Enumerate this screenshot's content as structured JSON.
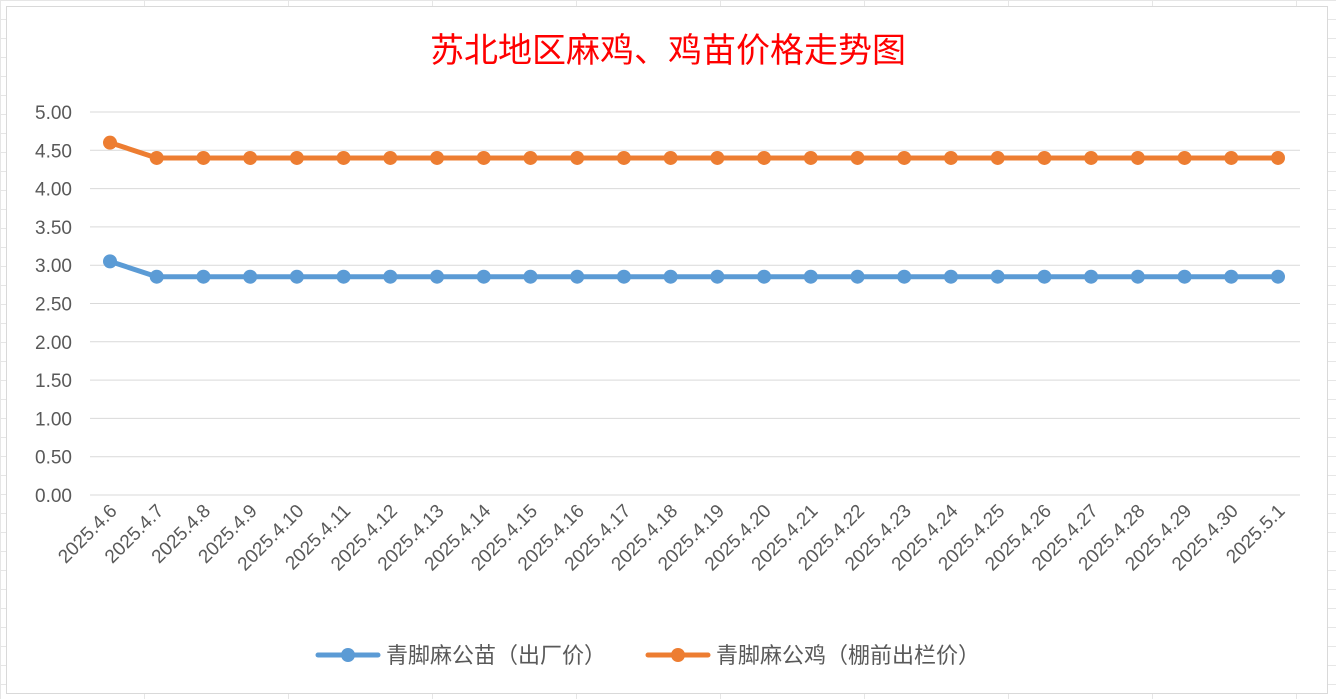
{
  "chart_data": {
    "type": "line",
    "title": "苏北地区麻鸡、鸡苗价格走势图",
    "title_color": "#ff0000",
    "categories": [
      "2025.4.6",
      "2025.4.7",
      "2025.4.8",
      "2025.4.9",
      "2025.4.10",
      "2025.4.11",
      "2025.4.12",
      "2025.4.13",
      "2025.4.14",
      "2025.4.15",
      "2025.4.16",
      "2025.4.17",
      "2025.4.18",
      "2025.4.19",
      "2025.4.20",
      "2025.4.21",
      "2025.4.22",
      "2025.4.23",
      "2025.4.24",
      "2025.4.25",
      "2025.4.26",
      "2025.4.27",
      "2025.4.28",
      "2025.4.29",
      "2025.4.30",
      "2025.5.1"
    ],
    "y_ticks": [
      "0.00",
      "0.50",
      "1.00",
      "1.50",
      "2.00",
      "2.50",
      "3.00",
      "3.50",
      "4.00",
      "4.50",
      "5.00"
    ],
    "ylim": [
      0,
      5
    ],
    "grid": true,
    "legend_position": "bottom",
    "series": [
      {
        "name": "青脚麻公苗（出厂价）",
        "color": "#5b9bd5",
        "values": [
          3.05,
          2.85,
          2.85,
          2.85,
          2.85,
          2.85,
          2.85,
          2.85,
          2.85,
          2.85,
          2.85,
          2.85,
          2.85,
          2.85,
          2.85,
          2.85,
          2.85,
          2.85,
          2.85,
          2.85,
          2.85,
          2.85,
          2.85,
          2.85,
          2.85,
          2.85
        ]
      },
      {
        "name": "青脚麻公鸡（棚前出栏价）",
        "color": "#ed7d31",
        "values": [
          4.6,
          4.4,
          4.4,
          4.4,
          4.4,
          4.4,
          4.4,
          4.4,
          4.4,
          4.4,
          4.4,
          4.4,
          4.4,
          4.4,
          4.4,
          4.4,
          4.4,
          4.4,
          4.4,
          4.4,
          4.4,
          4.4,
          4.4,
          4.4,
          4.4,
          4.4
        ]
      }
    ]
  }
}
